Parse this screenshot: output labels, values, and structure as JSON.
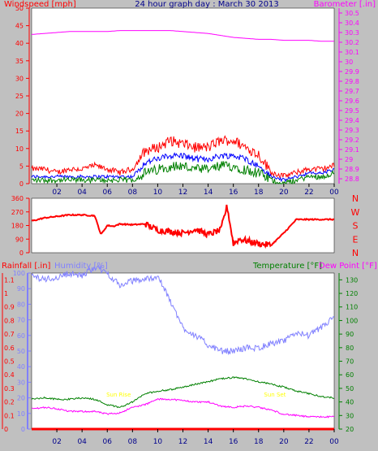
{
  "title": "24 hour graph day : March 30 2013",
  "colors": {
    "background": "#c0c0c0",
    "plot_bg": "#ffffff",
    "wind": "#ff0000",
    "wind_avg": "#0000ff",
    "wind_green": "#008000",
    "barometer": "#ff00ff",
    "direction": "#ff0000",
    "rain": "#ff0000",
    "humidity": "#8080ff",
    "temperature": "#008000",
    "dewpoint": "#ff00ff",
    "title": "#00008b",
    "annotation": "#ffff00"
  },
  "time_ticks": [
    "02",
    "04",
    "06",
    "08",
    "10",
    "12",
    "14",
    "16",
    "18",
    "20",
    "22",
    "00"
  ],
  "chart_data": [
    {
      "type": "line",
      "panel": "wind_barometer",
      "x_hours": [
        0,
        1,
        2,
        3,
        4,
        5,
        6,
        7,
        8,
        9,
        10,
        11,
        12,
        13,
        14,
        15,
        16,
        17,
        18,
        19,
        20,
        21,
        22,
        23,
        24
      ],
      "left_axis": {
        "label": "Windspeed [mph]",
        "ticks": [
          "0",
          "5",
          "10",
          "15",
          "20",
          "25",
          "30",
          "35",
          "40",
          "45",
          "50"
        ],
        "ylim": [
          0,
          50
        ]
      },
      "right_axis": {
        "label": "Barometer [.in]",
        "ticks": [
          "28.8",
          "28.9",
          "29",
          "29.1",
          "29.2",
          "29.3",
          "29.4",
          "29.5",
          "29.6",
          "29.7",
          "29.8",
          "29.9",
          "30",
          "30.1",
          "30.2",
          "30.3",
          "30.4",
          "30.5"
        ],
        "ylim": [
          28.75,
          30.55
        ]
      },
      "series": [
        {
          "key": "gust",
          "values": [
            4,
            4,
            3,
            4,
            4,
            5,
            4,
            3,
            4,
            9,
            10,
            12,
            11,
            10,
            10,
            12,
            12,
            10,
            8,
            3,
            2,
            3,
            4,
            4,
            5
          ]
        },
        {
          "key": "avg",
          "values": [
            2,
            2,
            2,
            2,
            2,
            2,
            2,
            2,
            2,
            6,
            7,
            8,
            8,
            7,
            7,
            8,
            8,
            7,
            5,
            2,
            1,
            2,
            3,
            3,
            4
          ]
        },
        {
          "key": "speed",
          "values": [
            1,
            1,
            1,
            1,
            1,
            1,
            1,
            1,
            1,
            3,
            4,
            5,
            5,
            4,
            4,
            5,
            5,
            4,
            3,
            1,
            0,
            1,
            2,
            2,
            3
          ]
        },
        {
          "key": "barometer",
          "values": [
            30.28,
            30.29,
            30.3,
            30.31,
            30.31,
            30.31,
            30.31,
            30.32,
            30.32,
            30.32,
            30.32,
            30.32,
            30.31,
            30.3,
            30.29,
            30.27,
            30.25,
            30.24,
            30.23,
            30.23,
            30.22,
            30.22,
            30.22,
            30.21,
            30.21
          ]
        }
      ]
    },
    {
      "type": "line",
      "panel": "wind_direction",
      "left_axis": {
        "ticks": [
          "360",
          "270",
          "180",
          "90",
          "0"
        ],
        "ylim": [
          0,
          360
        ]
      },
      "right_axis": {
        "ticks": [
          "N",
          "W",
          "S",
          "E",
          "N"
        ]
      },
      "x_hours": [
        0,
        1,
        2,
        3,
        4,
        5,
        5.5,
        6,
        6.5,
        7,
        8,
        9,
        10,
        11,
        12,
        13,
        14,
        15,
        15.5,
        16,
        16.5,
        17,
        18,
        19,
        20,
        21,
        22,
        23,
        24
      ],
      "series": [
        {
          "key": "direction",
          "values": [
            210,
            230,
            240,
            250,
            250,
            245,
            120,
            180,
            175,
            190,
            185,
            190,
            150,
            140,
            130,
            155,
            120,
            150,
            310,
            60,
            90,
            80,
            60,
            50,
            130,
            220,
            220,
            220,
            220
          ]
        }
      ]
    },
    {
      "type": "line",
      "panel": "rain_humidity_temperature",
      "left_axes": [
        {
          "label": "Rainfall [.in]",
          "ticks": [
            "0",
            "0.1",
            "0.2",
            "0.3",
            "0.4",
            "0.5",
            "0.6",
            "0.7",
            "0.8",
            "0.9",
            "1",
            "1.1"
          ],
          "ylim": [
            0,
            1.15
          ]
        },
        {
          "label": "Humidity [%]",
          "ticks": [
            "0",
            "10",
            "20",
            "30",
            "40",
            "50",
            "60",
            "70",
            "80",
            "90",
            "100"
          ],
          "ylim": [
            0,
            100
          ]
        }
      ],
      "right_axis": {
        "label": "Temperature [°F]",
        "label2": "Dew Point [°F]",
        "ticks": [
          "20",
          "30",
          "40",
          "50",
          "60",
          "70",
          "80",
          "90",
          "100",
          "110",
          "120",
          "130"
        ],
        "ylim": [
          20,
          135
        ]
      },
      "annotations": [
        {
          "text": "Sun Rise",
          "hour": 6.9
        },
        {
          "text": "Sun Set",
          "hour": 19.3
        }
      ],
      "x_hours": [
        0,
        1,
        2,
        3,
        4,
        5,
        6,
        7,
        8,
        9,
        10,
        11,
        12,
        13,
        14,
        15,
        16,
        17,
        18,
        19,
        20,
        21,
        22,
        23,
        24
      ],
      "series": [
        {
          "key": "rainfall",
          "values": [
            0,
            0,
            0,
            0,
            0,
            0,
            0,
            0,
            0,
            0,
            0,
            0,
            0,
            0,
            0,
            0,
            0,
            0,
            0,
            0,
            0,
            0,
            0,
            0,
            0
          ]
        },
        {
          "key": "humidity",
          "values": [
            98,
            96,
            97,
            100,
            98,
            104,
            100,
            92,
            95,
            96,
            98,
            82,
            65,
            60,
            54,
            50,
            50,
            52,
            52,
            55,
            56,
            62,
            60,
            65,
            72
          ]
        },
        {
          "key": "temperature",
          "values": [
            42,
            43,
            42,
            42,
            43,
            42,
            38,
            36,
            40,
            46,
            48,
            49,
            51,
            53,
            55,
            57,
            58,
            57,
            55,
            53,
            51,
            48,
            46,
            44,
            43
          ]
        },
        {
          "key": "dewpoint",
          "values": [
            35,
            36,
            35,
            33,
            33,
            33,
            31,
            32,
            36,
            38,
            42,
            42,
            41,
            40,
            40,
            37,
            36,
            37,
            36,
            34,
            31,
            30,
            29,
            29,
            29
          ]
        }
      ]
    }
  ]
}
